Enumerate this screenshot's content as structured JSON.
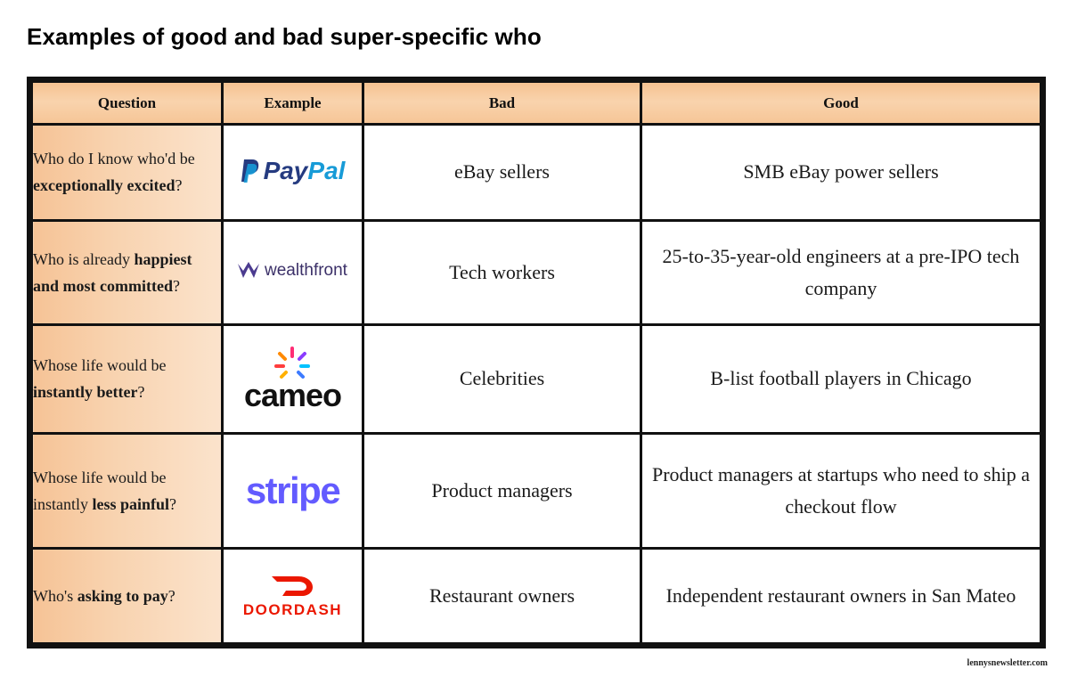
{
  "title": "Examples of good and bad super-specific who",
  "columns": [
    "Question",
    "Example",
    "Bad",
    "Good"
  ],
  "rows": [
    {
      "q": [
        "Who do I know who'd be ",
        "exceptionally excited",
        "?"
      ],
      "logo_text": [
        "Pay",
        "Pal"
      ],
      "bad": "eBay sellers",
      "good": "SMB eBay power sellers"
    },
    {
      "q": [
        "Who is already ",
        "happiest and most committed",
        "?"
      ],
      "logo_text": [
        "wealthfront"
      ],
      "bad": "Tech workers",
      "good": "25-to-35-year-old engineers at a pre-IPO tech company"
    },
    {
      "q": [
        "Whose life would be ",
        "instantly better",
        "?"
      ],
      "logo_text": [
        "cameo"
      ],
      "bad": "Celebrities",
      "good": "B-list football players in Chicago"
    },
    {
      "q": [
        "Whose life would be instantly ",
        "less painful",
        "?"
      ],
      "logo_text": [
        "stripe"
      ],
      "bad": "Product managers",
      "good": "Product managers at startups who need to ship a checkout flow"
    },
    {
      "q": [
        "Who's ",
        "asking to pay",
        "?"
      ],
      "logo_text": [
        "DOORDASH"
      ],
      "bad": "Restaurant owners",
      "good": "Independent restaurant owners in San Mateo"
    }
  ],
  "credit": "lennysnewsletter.com",
  "colors": {
    "header_orange": "#f6c392",
    "paypal_dark": "#253b80",
    "paypal_light": "#179bd7",
    "stripe": "#635bff",
    "doordash": "#eb1700",
    "wealthfront": "#4b3b8f"
  }
}
